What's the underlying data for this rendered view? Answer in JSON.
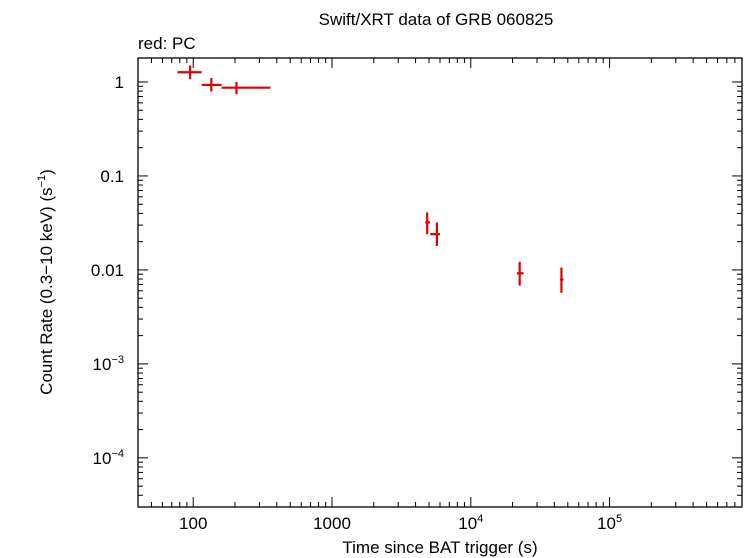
{
  "chart_data": {
    "type": "scatter",
    "title": "Swift/XRT data of GRB 060825",
    "legend_note": "red: PC",
    "xlabel": "Time since BAT trigger (s)",
    "ylabel_main": "Count Rate (0.3−10 keV) (s",
    "ylabel_exp": "−1",
    "ylabel_close": ")",
    "x_scale": "log",
    "y_scale": "log",
    "xlim": [
      40,
      900000
    ],
    "ylim": [
      3e-05,
      1.8
    ],
    "x_ticks": [
      {
        "value": 100,
        "label": "100"
      },
      {
        "value": 1000,
        "label": "1000"
      },
      {
        "value": 10000,
        "base": "10",
        "exp": "4"
      },
      {
        "value": 100000,
        "base": "10",
        "exp": "5"
      }
    ],
    "y_ticks": [
      {
        "value": 1,
        "label": "1"
      },
      {
        "value": 0.1,
        "label": "0.1"
      },
      {
        "value": 0.01,
        "label": "0.01"
      },
      {
        "value": 0.001,
        "base": "10",
        "exp": "−3"
      },
      {
        "value": 0.0001,
        "base": "10",
        "exp": "−4"
      }
    ],
    "series": [
      {
        "name": "PC",
        "color": "#e00000",
        "points": [
          {
            "x": 95,
            "xlo": 77,
            "xhi": 115,
            "y": 1.27,
            "ylo": 1.07,
            "yhi": 1.5
          },
          {
            "x": 135,
            "xlo": 115,
            "xhi": 160,
            "y": 0.93,
            "ylo": 0.79,
            "yhi": 1.1
          },
          {
            "x": 205,
            "xlo": 160,
            "xhi": 360,
            "y": 0.87,
            "ylo": 0.74,
            "yhi": 1.0
          },
          {
            "x": 4850,
            "xlo": 4700,
            "xhi": 5100,
            "y": 0.032,
            "ylo": 0.024,
            "yhi": 0.041
          },
          {
            "x": 5700,
            "xlo": 5100,
            "xhi": 6000,
            "y": 0.024,
            "ylo": 0.018,
            "yhi": 0.032
          },
          {
            "x": 22500,
            "xlo": 21500,
            "xhi": 24000,
            "y": 0.0092,
            "ylo": 0.0068,
            "yhi": 0.0122
          },
          {
            "x": 45000,
            "xlo": 44000,
            "xhi": 46500,
            "y": 0.0079,
            "ylo": 0.0057,
            "yhi": 0.0106
          }
        ]
      }
    ],
    "grid": false
  }
}
